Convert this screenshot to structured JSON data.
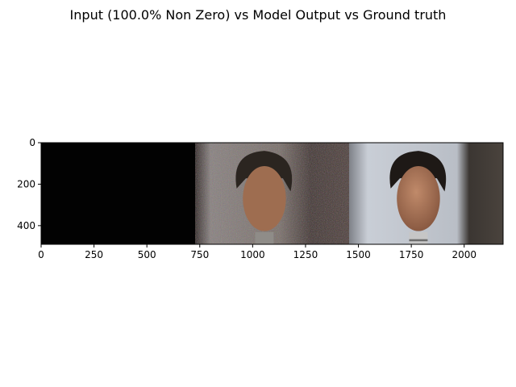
{
  "figure": {
    "title": "Input (100.0% Non Zero) vs Model Output vs Ground truth"
  },
  "axes": {
    "x_range": [
      0,
      2184
    ],
    "y_range": [
      0,
      490
    ],
    "x_ticks": [
      0,
      250,
      500,
      750,
      1000,
      1250,
      1500,
      1750,
      2000
    ],
    "y_ticks": [
      0,
      200,
      400
    ]
  },
  "panels": [
    {
      "name": "input",
      "x_start": 0,
      "x_end": 728,
      "content": "black"
    },
    {
      "name": "model-output",
      "x_start": 728,
      "x_end": 1456,
      "content": "noisy-reconstruction"
    },
    {
      "name": "ground-truth",
      "x_start": 1456,
      "x_end": 2184,
      "content": "mannequin-head-photo"
    }
  ],
  "colors": {
    "input_bg": "#020202",
    "output_wall": "#8d8a80",
    "truth_wall": "#c2c7cf",
    "skin": "#a97658",
    "hair": "#1e1916"
  }
}
